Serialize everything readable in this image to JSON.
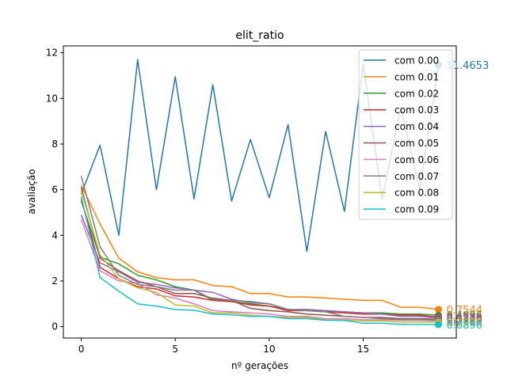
{
  "chart_data": {
    "type": "line",
    "title": "elit_ratio",
    "xlabel": "nº gerações",
    "ylabel": "avaliação",
    "xlim": [
      -0.95,
      19.95
    ],
    "ylim": [
      -0.5,
      12.3
    ],
    "xticks": [
      0,
      5,
      10,
      15
    ],
    "yticks": [
      0,
      2,
      4,
      6,
      8,
      10,
      12
    ],
    "grid": false,
    "legend_position": "top-right",
    "x": [
      0,
      1,
      2,
      3,
      4,
      5,
      6,
      7,
      8,
      9,
      10,
      11,
      12,
      13,
      14,
      15,
      16,
      17,
      18,
      19
    ],
    "series": [
      {
        "name": "com 0.00",
        "color": "#1f77b4",
        "values": [
          5.8,
          7.95,
          4.0,
          11.7,
          6.0,
          10.95,
          5.6,
          10.6,
          5.5,
          8.2,
          5.65,
          8.85,
          3.3,
          8.55,
          5.05,
          11.5,
          5.6,
          9.6,
          6.0,
          11.4653
        ]
      },
      {
        "name": "com 0.01",
        "color": "#ff7f0e",
        "values": [
          6.2,
          4.5,
          3.0,
          2.4,
          2.15,
          2.05,
          2.05,
          1.8,
          1.75,
          1.45,
          1.45,
          1.3,
          1.3,
          1.25,
          1.2,
          1.15,
          1.15,
          0.85,
          0.85,
          0.7544
        ]
      },
      {
        "name": "com 0.02",
        "color": "#2ca02c",
        "values": [
          5.5,
          3.05,
          2.75,
          2.25,
          2.05,
          1.75,
          1.6,
          1.15,
          1.1,
          1.0,
          0.9,
          0.75,
          0.75,
          0.7,
          0.65,
          0.6,
          0.6,
          0.55,
          0.55,
          0.5
        ]
      },
      {
        "name": "com 0.03",
        "color": "#d62728",
        "values": [
          5.6,
          2.6,
          2.1,
          1.75,
          1.65,
          1.35,
          1.3,
          1.15,
          1.1,
          0.95,
          0.9,
          0.7,
          0.7,
          0.65,
          0.6,
          0.55,
          0.55,
          0.5,
          0.5,
          0.42
        ]
      },
      {
        "name": "com 0.04",
        "color": "#9467bd",
        "values": [
          4.9,
          2.8,
          2.4,
          1.95,
          1.85,
          1.7,
          1.6,
          1.5,
          1.2,
          1.05,
          1.0,
          0.75,
          0.75,
          0.7,
          0.65,
          0.6,
          0.55,
          0.45,
          0.45,
          0.38
        ]
      },
      {
        "name": "com 0.05",
        "color": "#8c564b",
        "values": [
          6.1,
          3.0,
          2.45,
          2.0,
          1.75,
          1.45,
          1.45,
          1.25,
          1.15,
          0.8,
          0.7,
          0.65,
          0.55,
          0.5,
          0.45,
          0.4,
          0.4,
          0.35,
          0.35,
          0.33
        ]
      },
      {
        "name": "com 0.06",
        "color": "#e377c2",
        "values": [
          4.7,
          2.45,
          2.0,
          1.9,
          1.4,
          1.25,
          1.0,
          0.7,
          0.65,
          0.6,
          0.55,
          0.45,
          0.45,
          0.35,
          0.35,
          0.3,
          0.3,
          0.28,
          0.28,
          0.26
        ]
      },
      {
        "name": "com 0.07",
        "color": "#7f7f7f",
        "values": [
          6.6,
          3.5,
          2.25,
          1.85,
          1.75,
          1.6,
          1.6,
          1.2,
          1.15,
          1.1,
          1.0,
          0.75,
          0.7,
          0.65,
          0.45,
          0.4,
          0.35,
          0.3,
          0.3,
          0.27
        ]
      },
      {
        "name": "com 0.08",
        "color": "#bcbd22",
        "values": [
          5.95,
          3.15,
          2.1,
          1.7,
          1.5,
          0.95,
          0.9,
          0.6,
          0.6,
          0.5,
          0.45,
          0.4,
          0.4,
          0.3,
          0.3,
          0.25,
          0.25,
          0.2,
          0.2,
          0.2
        ]
      },
      {
        "name": "com 0.09",
        "color": "#17becf",
        "values": [
          5.7,
          2.15,
          1.55,
          1.0,
          0.9,
          0.75,
          0.72,
          0.55,
          0.52,
          0.45,
          0.45,
          0.35,
          0.35,
          0.28,
          0.27,
          0.15,
          0.15,
          0.1,
          0.1,
          0.0896
        ]
      }
    ],
    "end_labels": [
      {
        "series": "com 0.00",
        "text": "11.4653"
      },
      {
        "series": "com 0.01",
        "text": "0.7544"
      },
      {
        "series": "com 0.02",
        "text": "0.4996"
      },
      {
        "series": "com 0.03",
        "text": "0.4236"
      },
      {
        "series": "com 0.04",
        "text": "0.3825"
      },
      {
        "series": "com 0.05",
        "text": "0.3306"
      },
      {
        "series": "com 0.06",
        "text": "0.2614"
      },
      {
        "series": "com 0.07",
        "text": "0.2688"
      },
      {
        "series": "com 0.08",
        "text": "0.1995"
      },
      {
        "series": "com 0.09",
        "text": "0.0896"
      }
    ]
  }
}
